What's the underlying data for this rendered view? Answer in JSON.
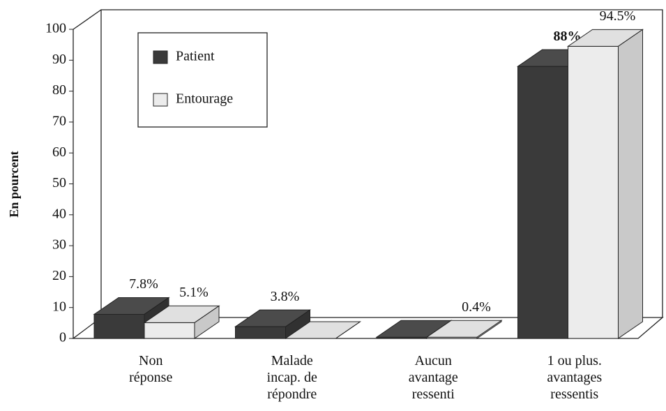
{
  "chart_data": {
    "type": "bar3d",
    "y_label": "En pourcent",
    "categories": [
      [
        "Non",
        "réponse"
      ],
      [
        "Malade",
        "incap. de",
        "répondre"
      ],
      [
        "Aucun",
        "avantage",
        "ressenti"
      ],
      [
        "1 ou plus.",
        "avantages",
        "ressentis"
      ]
    ],
    "series": [
      {
        "name": "Patient",
        "color": "#3a3a3a",
        "values": [
          7.8,
          3.8,
          0.4,
          88
        ],
        "value_labels": [
          "7.8%",
          "3.8%",
          null,
          "88%"
        ]
      },
      {
        "name": "Entourage",
        "color": "#ececec",
        "values": [
          5.1,
          0,
          0.4,
          94.5
        ],
        "value_labels": [
          "5.1%",
          null,
          "0.4%",
          "94.5%"
        ]
      }
    ],
    "ylim": [
      0,
      100
    ],
    "yticks": [
      0,
      10,
      20,
      30,
      40,
      50,
      60,
      70,
      80,
      90,
      100
    ],
    "legend": "upper left"
  }
}
